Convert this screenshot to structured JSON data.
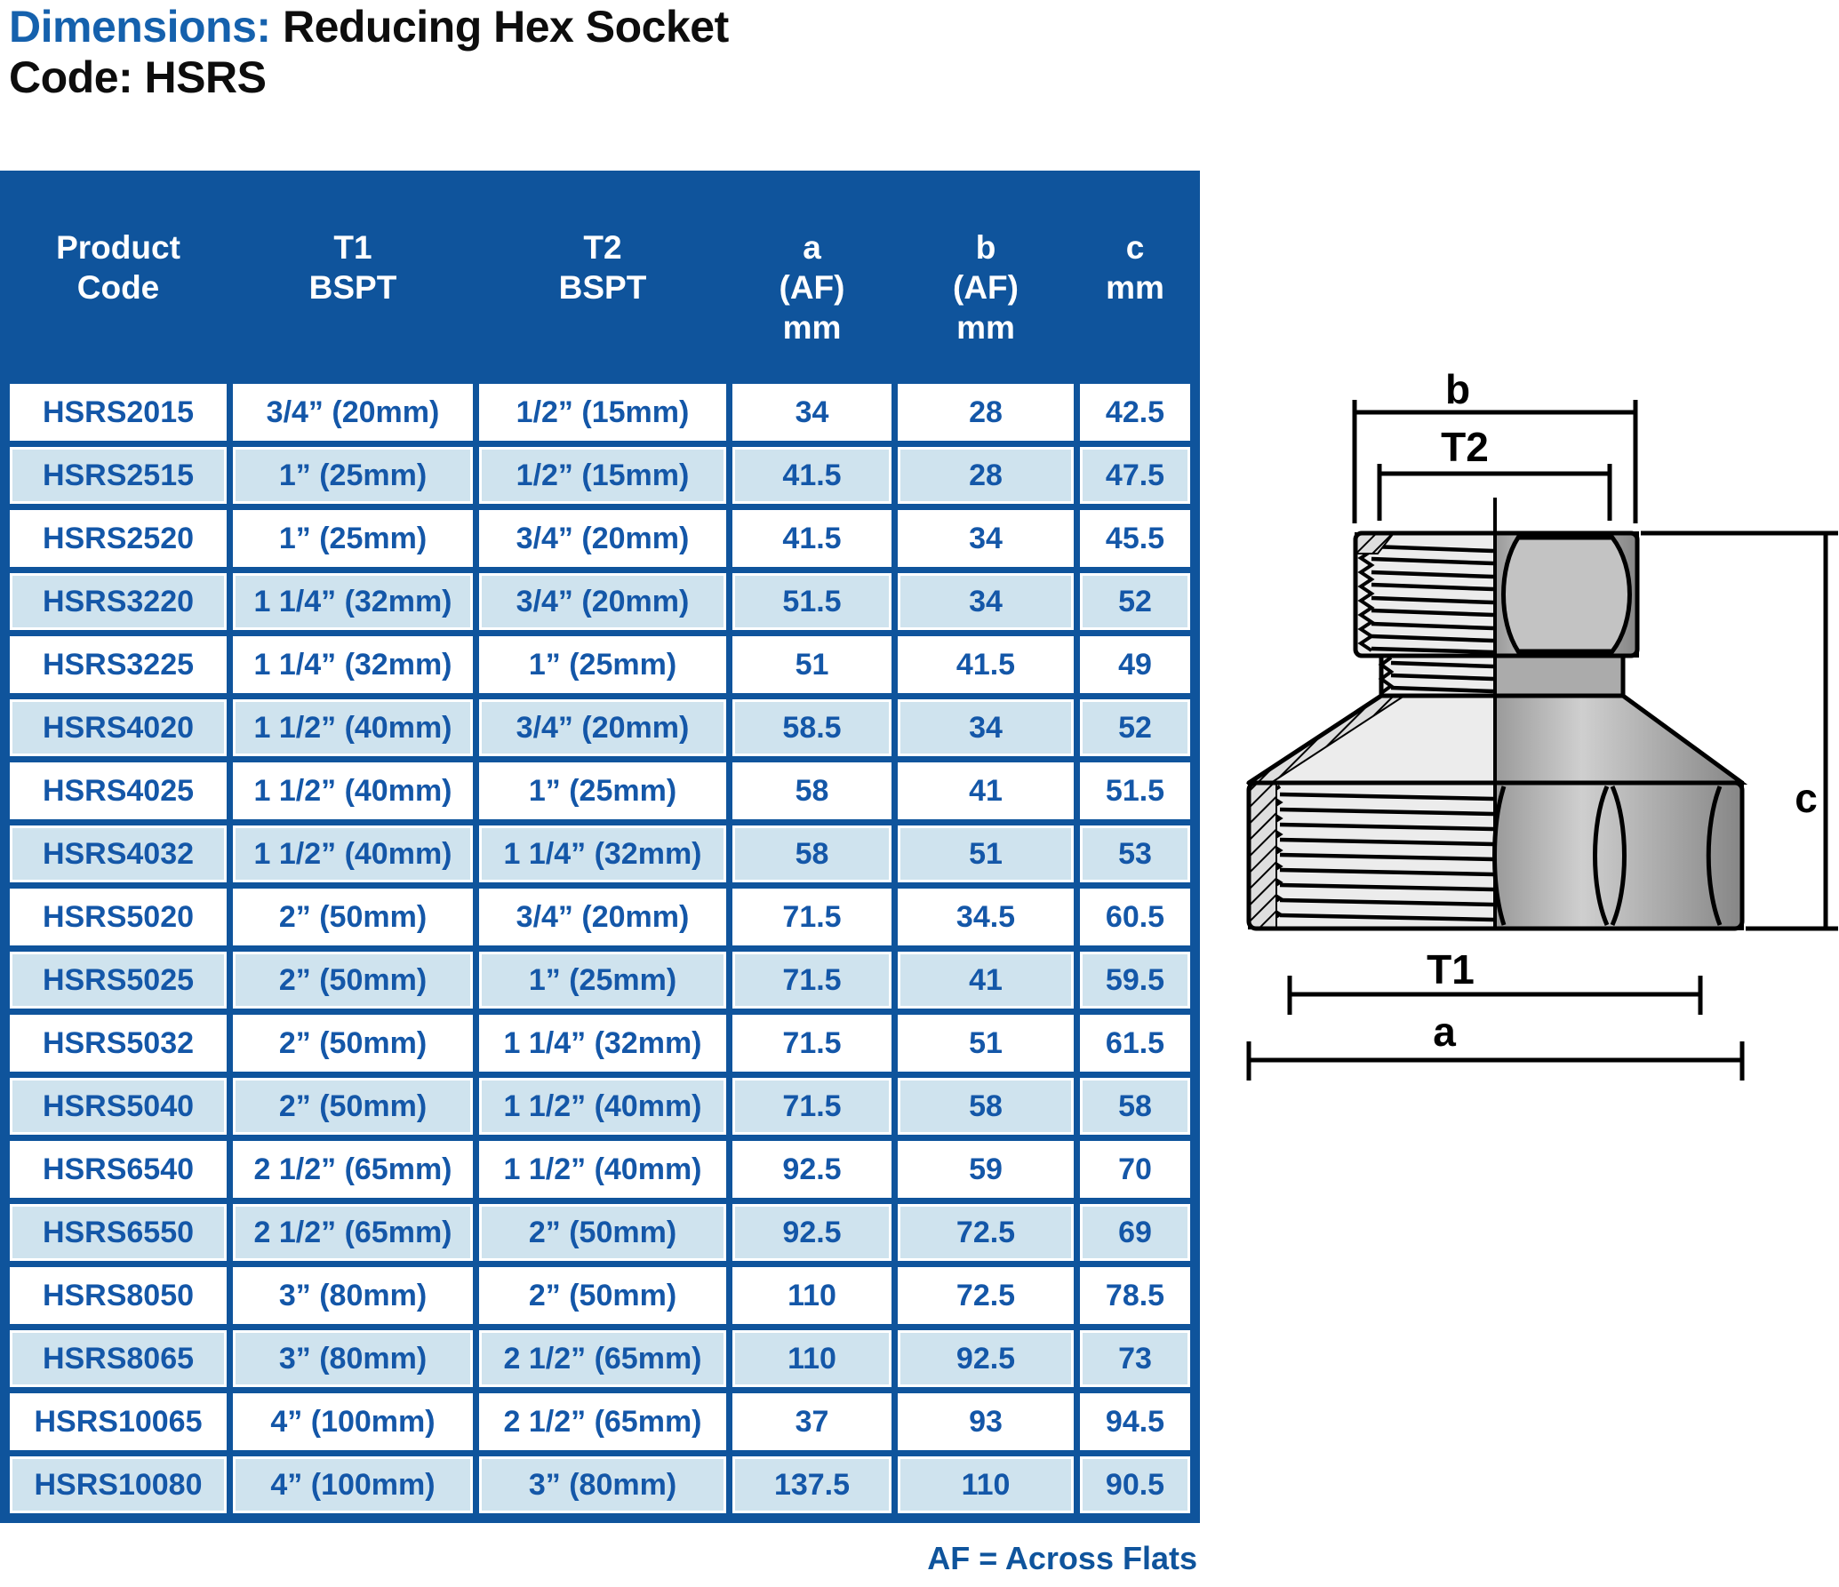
{
  "title": {
    "dimensions_label": "Dimensions:",
    "product_name": "Reducing Hex Socket",
    "code_line": "Code: HSRS"
  },
  "table": {
    "headers": [
      {
        "lines": [
          "Product",
          "Code"
        ]
      },
      {
        "lines": [
          "T1",
          "BSPT"
        ]
      },
      {
        "lines": [
          "T2",
          "BSPT"
        ]
      },
      {
        "lines": [
          "a",
          "(AF)",
          "mm"
        ]
      },
      {
        "lines": [
          "b",
          "(AF)",
          "mm"
        ]
      },
      {
        "lines": [
          "c",
          "mm"
        ]
      }
    ],
    "rows": [
      {
        "code": "HSRS2015",
        "t1": "3/4” (20mm)",
        "t2": "1/2” (15mm)",
        "a": "34",
        "b": "28",
        "c": "42.5"
      },
      {
        "code": "HSRS2515",
        "t1": "1” (25mm)",
        "t2": "1/2” (15mm)",
        "a": "41.5",
        "b": "28",
        "c": "47.5"
      },
      {
        "code": "HSRS2520",
        "t1": "1” (25mm)",
        "t2": "3/4” (20mm)",
        "a": "41.5",
        "b": "34",
        "c": "45.5"
      },
      {
        "code": "HSRS3220",
        "t1": "1 1/4” (32mm)",
        "t2": "3/4” (20mm)",
        "a": "51.5",
        "b": "34",
        "c": "52"
      },
      {
        "code": "HSRS3225",
        "t1": "1 1/4” (32mm)",
        "t2": "1” (25mm)",
        "a": "51",
        "b": "41.5",
        "c": "49"
      },
      {
        "code": "HSRS4020",
        "t1": "1 1/2” (40mm)",
        "t2": "3/4” (20mm)",
        "a": "58.5",
        "b": "34",
        "c": "52"
      },
      {
        "code": "HSRS4025",
        "t1": "1 1/2” (40mm)",
        "t2": "1” (25mm)",
        "a": "58",
        "b": "41",
        "c": "51.5"
      },
      {
        "code": "HSRS4032",
        "t1": "1 1/2” (40mm)",
        "t2": "1 1/4” (32mm)",
        "a": "58",
        "b": "51",
        "c": "53"
      },
      {
        "code": "HSRS5020",
        "t1": "2” (50mm)",
        "t2": "3/4” (20mm)",
        "a": "71.5",
        "b": "34.5",
        "c": "60.5"
      },
      {
        "code": "HSRS5025",
        "t1": "2” (50mm)",
        "t2": "1” (25mm)",
        "a": "71.5",
        "b": "41",
        "c": "59.5"
      },
      {
        "code": "HSRS5032",
        "t1": "2” (50mm)",
        "t2": "1 1/4” (32mm)",
        "a": "71.5",
        "b": "51",
        "c": "61.5"
      },
      {
        "code": "HSRS5040",
        "t1": "2” (50mm)",
        "t2": "1 1/2” (40mm)",
        "a": "71.5",
        "b": "58",
        "c": "58"
      },
      {
        "code": "HSRS6540",
        "t1": "2 1/2” (65mm)",
        "t2": "1 1/2” (40mm)",
        "a": "92.5",
        "b": "59",
        "c": "70"
      },
      {
        "code": "HSRS6550",
        "t1": "2 1/2” (65mm)",
        "t2": "2” (50mm)",
        "a": "92.5",
        "b": "72.5",
        "c": "69"
      },
      {
        "code": "HSRS8050",
        "t1": "3” (80mm)",
        "t2": "2” (50mm)",
        "a": "110",
        "b": "72.5",
        "c": "78.5"
      },
      {
        "code": "HSRS8065",
        "t1": "3” (80mm)",
        "t2": "2 1/2” (65mm)",
        "a": "110",
        "b": "92.5",
        "c": "73"
      },
      {
        "code": "HSRS10065",
        "t1": "4” (100mm)",
        "t2": "2 1/2” (65mm)",
        "a": "37",
        "b": "93",
        "c": "94.5"
      },
      {
        "code": "HSRS10080",
        "t1": "4” (100mm)",
        "t2": "3” (80mm)",
        "a": "137.5",
        "b": "110",
        "c": "90.5"
      }
    ]
  },
  "footnote": "AF = Across Flats",
  "diagram": {
    "labels": {
      "b": "b",
      "t2": "T2",
      "c": "c",
      "t1": "T1",
      "a": "a"
    }
  },
  "colors": {
    "header_blue": "#0f549c",
    "row_alt_blue": "#cfe3ee",
    "cell_text_blue": "#1457a8",
    "title_blue": "#1561ad"
  }
}
